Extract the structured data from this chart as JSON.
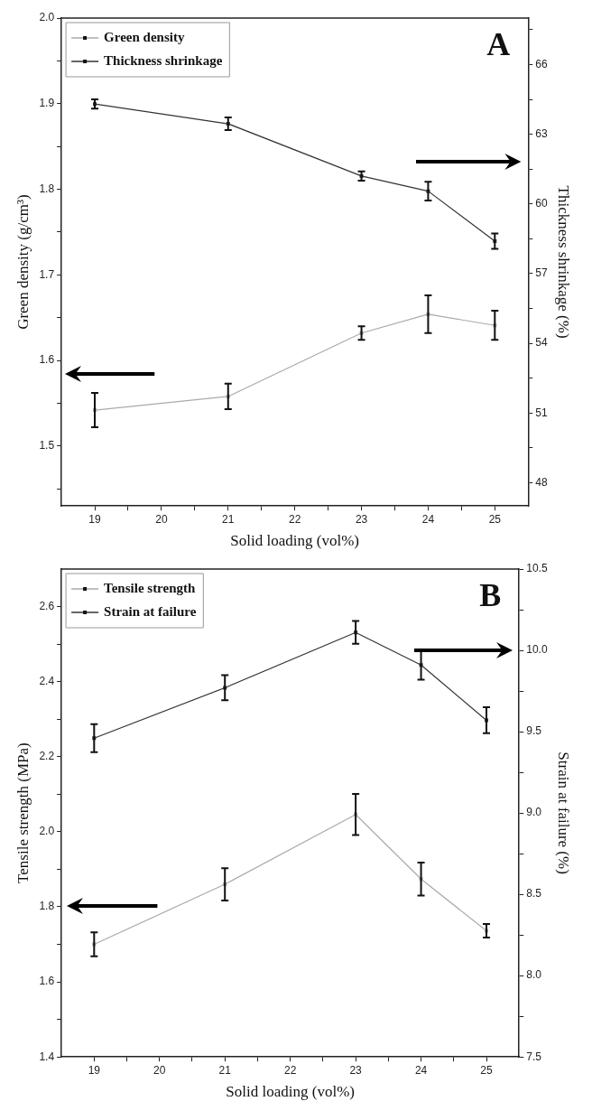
{
  "chart_data": [
    {
      "type": "line",
      "annotations": [
        "A"
      ],
      "xlabel": "Solid loading (vol%)",
      "ylabel": "Green density (g/cm³)",
      "y2label": "Thickness shrinkage (%)",
      "x": [
        19,
        21,
        23,
        24,
        25
      ],
      "xlim": [
        18.5,
        25.5
      ],
      "xticks": [
        19,
        {
          "value": 19.5,
          "label": null
        },
        20,
        {
          "value": 20.5,
          "label": null
        },
        21,
        {
          "value": 21.5,
          "label": null
        },
        22,
        {
          "value": 22.5,
          "label": null
        },
        23,
        {
          "value": 23.5,
          "label": null
        },
        24,
        {
          "value": 24.5,
          "label": null
        },
        25
      ],
      "ylim": [
        1.43,
        2.0
      ],
      "yticks": [
        {
          "value": 1.45,
          "label": null
        },
        1.5,
        {
          "value": 1.55,
          "label": null
        },
        1.6,
        {
          "value": 1.65,
          "label": null
        },
        1.7,
        {
          "value": 1.75,
          "label": null
        },
        1.8,
        {
          "value": 1.85,
          "label": null
        },
        1.9,
        {
          "value": 1.95,
          "label": null
        },
        {
          "value": 2.0,
          "label": "2.0"
        }
      ],
      "y2lim": [
        47,
        68
      ],
      "y2ticks": [
        48,
        {
          "value": 49.5,
          "label": null
        },
        51,
        {
          "value": 52.5,
          "label": null
        },
        54,
        {
          "value": 55.5,
          "label": null
        },
        57,
        {
          "value": 58.5,
          "label": null
        },
        60,
        {
          "value": 61.5,
          "label": null
        },
        63,
        {
          "value": 64.5,
          "label": null
        },
        66,
        {
          "value": 67.5,
          "label": null
        }
      ],
      "legend": "top left",
      "grid": false,
      "marker": "square",
      "line_style": "solid",
      "series": [
        {
          "name": "Green density",
          "color": "#aaaaaa",
          "axis": "y",
          "values": [
            1.542,
            1.558,
            1.632,
            1.654,
            1.641
          ],
          "errors": [
            0.02,
            0.015,
            0.008,
            0.022,
            0.017
          ]
        },
        {
          "name": "Thickness shrinkage",
          "color": "#333333",
          "axis": "y2",
          "values": [
            64.3,
            63.45,
            61.2,
            60.55,
            58.4
          ],
          "errors": [
            0.2,
            0.27,
            0.2,
            0.4,
            0.33
          ]
        }
      ]
    },
    {
      "type": "line",
      "annotations": [
        "B"
      ],
      "xlabel": "Solid loading (vol%)",
      "ylabel": "Tensile strength (MPa)",
      "y2label": "Strain at failure (%)",
      "x": [
        19,
        21,
        23,
        24,
        25
      ],
      "xlim": [
        18.5,
        25.5
      ],
      "xticks": [
        19,
        {
          "value": 19.5,
          "label": null
        },
        20,
        {
          "value": 20.5,
          "label": null
        },
        21,
        {
          "value": 21.5,
          "label": null
        },
        22,
        {
          "value": 22.5,
          "label": null
        },
        23,
        {
          "value": 23.5,
          "label": null
        },
        24,
        {
          "value": 24.5,
          "label": null
        },
        25
      ],
      "ylim": [
        1.4,
        2.7
      ],
      "yticks": [
        1.4,
        {
          "value": 1.5,
          "label": null
        },
        1.6,
        {
          "value": 1.7,
          "label": null
        },
        1.8,
        {
          "value": 1.9,
          "label": null
        },
        {
          "value": 2.0,
          "label": "2.0"
        },
        {
          "value": 2.1,
          "label": null
        },
        2.2,
        {
          "value": 2.3,
          "label": null
        },
        2.4,
        {
          "value": 2.5,
          "label": null
        },
        2.6
      ],
      "y2lim": [
        7.5,
        10.5
      ],
      "y2ticks": [
        7.5,
        {
          "value": 7.75,
          "label": null
        },
        {
          "value": 8.0,
          "label": "8.0"
        },
        {
          "value": 8.25,
          "label": null
        },
        8.5,
        {
          "value": 8.75,
          "label": null
        },
        {
          "value": 9.0,
          "label": "9.0"
        },
        {
          "value": 9.25,
          "label": null
        },
        9.5,
        {
          "value": 9.75,
          "label": null
        },
        {
          "value": 10.0,
          "label": "10.0"
        },
        {
          "value": 10.25,
          "label": null
        },
        10.5
      ],
      "legend": "top left",
      "grid": false,
      "marker": "square",
      "line_style": "solid",
      "series": [
        {
          "name": "Tensile strength",
          "color": "#aaaaaa",
          "axis": "y",
          "values": [
            1.7,
            1.86,
            2.046,
            1.874,
            1.736
          ],
          "errors": [
            0.032,
            0.043,
            0.055,
            0.044,
            0.018
          ]
        },
        {
          "name": "Strain at failure",
          "color": "#333333",
          "axis": "y2",
          "values": [
            9.46,
            9.77,
            10.11,
            9.91,
            9.57
          ],
          "errors": [
            0.086,
            0.077,
            0.07,
            0.09,
            0.08
          ]
        }
      ]
    }
  ]
}
